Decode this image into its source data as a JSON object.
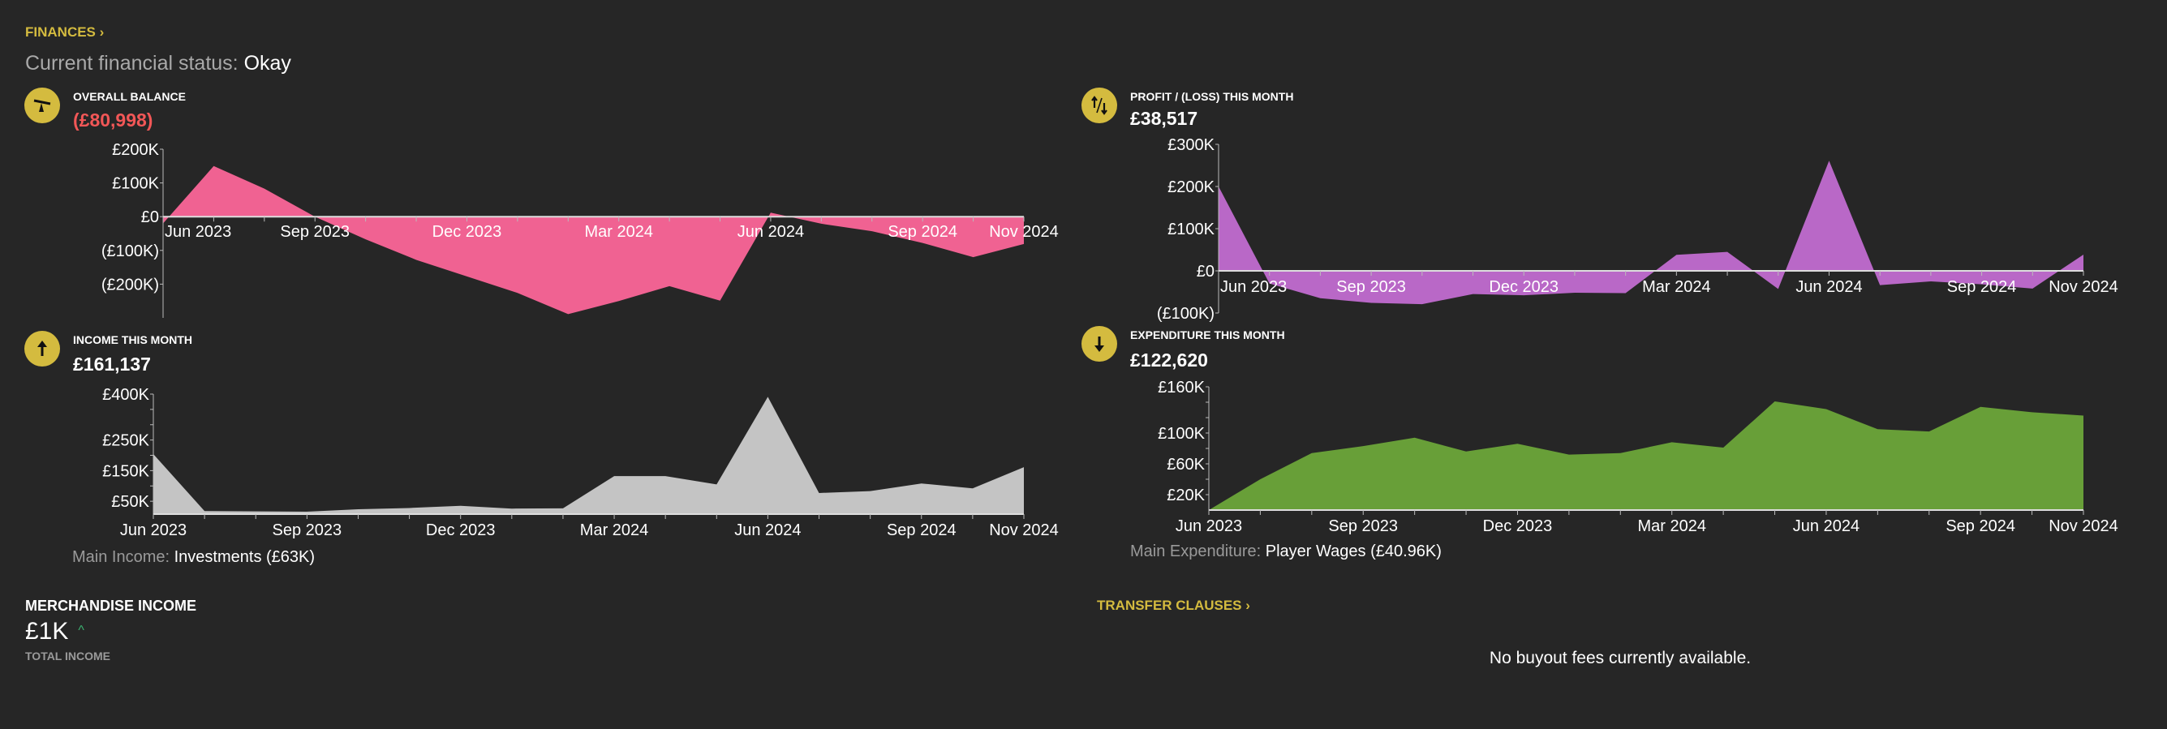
{
  "header": {
    "finances_link": "FINANCES",
    "status_label": "Current financial status:",
    "status_value": "Okay"
  },
  "balance": {
    "title": "OVERALL BALANCE",
    "value": "(£80,998)",
    "icon": "scales-icon"
  },
  "profit": {
    "title": "PROFIT / (LOSS) THIS MONTH",
    "value": "£38,517",
    "icon": "up-down-arrows-icon"
  },
  "income": {
    "title": "INCOME THIS MONTH",
    "value": "£161,137",
    "icon": "arrow-up-icon",
    "main_label": "Main Income:",
    "main_value": "Investments (£63K)"
  },
  "expenditure": {
    "title": "EXPENDITURE THIS MONTH",
    "value": "£122,620",
    "icon": "arrow-down-icon",
    "main_label": "Main Expenditure:",
    "main_value": "Player Wages (£40.96K)"
  },
  "merchandise": {
    "title": "MERCHANDISE INCOME",
    "value": "£1K",
    "trend_icon": "caret-up-icon",
    "caption": "TOTAL INCOME"
  },
  "transfer": {
    "link": "TRANSFER CLAUSES",
    "empty_message": "No buyout fees currently available."
  },
  "colors": {
    "accent": "#d4bb3f",
    "negative": "#f25757",
    "balance": "#f06292",
    "profit": "#b968c7",
    "income": "#c4c4c4",
    "expenditure": "#689f38"
  },
  "chart_data": [
    {
      "id": "balance",
      "type": "area",
      "title": "OVERALL BALANCE",
      "x": [
        "Jun 2023",
        "Jul 2023",
        "Aug 2023",
        "Sep 2023",
        "Oct 2023",
        "Nov 2023",
        "Dec 2023",
        "Jan 2024",
        "Feb 2024",
        "Mar 2024",
        "Apr 2024",
        "May 2024",
        "Jun 2024",
        "Jul 2024",
        "Aug 2024",
        "Sep 2024",
        "Oct 2024",
        "Nov 2024"
      ],
      "values": [
        -20000,
        150000,
        83000,
        0,
        -67000,
        -128000,
        -177000,
        -226000,
        -289000,
        -250000,
        -206000,
        -249000,
        12000,
        -21000,
        -43000,
        -78000,
        -120000,
        -80998
      ],
      "ylim": [
        -300000,
        200000
      ],
      "yticks": [
        {
          "v": 200000,
          "label": "£200K"
        },
        {
          "v": 100000,
          "label": "£100K"
        },
        {
          "v": 0,
          "label": "£0"
        },
        {
          "v": -100000,
          "label": "(£100K)"
        },
        {
          "v": -200000,
          "label": "(£200K)"
        }
      ],
      "xlabels": [
        {
          "i": 0,
          "label": "Jun 2023"
        },
        {
          "i": 3,
          "label": "Sep 2023"
        },
        {
          "i": 6,
          "label": "Dec 2023"
        },
        {
          "i": 9,
          "label": "Mar 2024"
        },
        {
          "i": 12,
          "label": "Jun 2024"
        },
        {
          "i": 15,
          "label": "Sep 2024"
        },
        {
          "i": 17,
          "label": "Nov 2024"
        }
      ]
    },
    {
      "id": "profit",
      "type": "area",
      "title": "PROFIT / (LOSS) THIS MONTH",
      "x": [
        "Jun 2023",
        "Jul 2023",
        "Aug 2023",
        "Sep 2023",
        "Oct 2023",
        "Nov 2023",
        "Dec 2023",
        "Jan 2024",
        "Feb 2024",
        "Mar 2024",
        "Apr 2024",
        "May 2024",
        "Jun 2024",
        "Jul 2024",
        "Aug 2024",
        "Sep 2024",
        "Oct 2024",
        "Nov 2024"
      ],
      "values": [
        200000,
        -30000,
        -65000,
        -76000,
        -79000,
        -55000,
        -58000,
        -52000,
        -53000,
        38000,
        45000,
        -43000,
        261000,
        -34000,
        -25000,
        -32000,
        -42000,
        38517
      ],
      "ylim": [
        -100000,
        300000
      ],
      "yticks": [
        {
          "v": 300000,
          "label": "£300K"
        },
        {
          "v": 200000,
          "label": "£200K"
        },
        {
          "v": 100000,
          "label": "£100K"
        },
        {
          "v": 0,
          "label": "£0"
        },
        {
          "v": -100000,
          "label": "(£100K)"
        }
      ],
      "xlabels": [
        {
          "i": 0,
          "label": "Jun 2023"
        },
        {
          "i": 3,
          "label": "Sep 2023"
        },
        {
          "i": 6,
          "label": "Dec 2023"
        },
        {
          "i": 9,
          "label": "Mar 2024"
        },
        {
          "i": 12,
          "label": "Jun 2024"
        },
        {
          "i": 15,
          "label": "Sep 2024"
        },
        {
          "i": 17,
          "label": "Nov 2024"
        }
      ]
    },
    {
      "id": "income",
      "type": "area",
      "title": "INCOME THIS MONTH",
      "x": [
        "Jun 2023",
        "Jul 2023",
        "Aug 2023",
        "Sep 2023",
        "Oct 2023",
        "Nov 2023",
        "Dec 2023",
        "Jan 2024",
        "Feb 2024",
        "Mar 2024",
        "Apr 2024",
        "May 2024",
        "Jun 2024",
        "Jul 2024",
        "Aug 2024",
        "Sep 2024",
        "Oct 2024",
        "Nov 2024"
      ],
      "values": [
        204000,
        18000,
        17000,
        16000,
        24000,
        28000,
        35000,
        26000,
        27000,
        132000,
        132000,
        105000,
        391000,
        77000,
        83000,
        108000,
        92000,
        161137
      ],
      "ylim": [
        8000,
        400000
      ],
      "yticks": [
        {
          "v": 400000,
          "label": "£400K"
        },
        {
          "v": 350000,
          "label": ""
        },
        {
          "v": 300000,
          "label": ""
        },
        {
          "v": 250000,
          "label": "£250K"
        },
        {
          "v": 200000,
          "label": ""
        },
        {
          "v": 150000,
          "label": "£150K"
        },
        {
          "v": 100000,
          "label": ""
        },
        {
          "v": 50000,
          "label": "£50K"
        }
      ],
      "xlabels": [
        {
          "i": 0,
          "label": "Jun 2023"
        },
        {
          "i": 3,
          "label": "Sep 2023"
        },
        {
          "i": 6,
          "label": "Dec 2023"
        },
        {
          "i": 9,
          "label": "Mar 2024"
        },
        {
          "i": 12,
          "label": "Jun 2024"
        },
        {
          "i": 15,
          "label": "Sep 2024"
        },
        {
          "i": 17,
          "label": "Nov 2024"
        }
      ]
    },
    {
      "id": "expenditure",
      "type": "area",
      "title": "EXPENDITURE THIS MONTH",
      "x": [
        "Jun 2023",
        "Jul 2023",
        "Aug 2023",
        "Sep 2023",
        "Oct 2023",
        "Nov 2023",
        "Dec 2023",
        "Jan 2024",
        "Feb 2024",
        "Mar 2024",
        "Apr 2024",
        "May 2024",
        "Jun 2024",
        "Jul 2024",
        "Aug 2024",
        "Sep 2024",
        "Oct 2024",
        "Nov 2024"
      ],
      "values": [
        0,
        40000,
        74000,
        83000,
        94000,
        76000,
        86000,
        72000,
        74000,
        88000,
        81000,
        141000,
        131000,
        105000,
        102000,
        134000,
        127000,
        122620
      ],
      "ylim": [
        0,
        160000
      ],
      "yticks": [
        {
          "v": 160000,
          "label": "£160K"
        },
        {
          "v": 140000,
          "label": ""
        },
        {
          "v": 120000,
          "label": ""
        },
        {
          "v": 100000,
          "label": "£100K"
        },
        {
          "v": 80000,
          "label": ""
        },
        {
          "v": 60000,
          "label": "£60K"
        },
        {
          "v": 40000,
          "label": ""
        },
        {
          "v": 20000,
          "label": "£20K"
        }
      ],
      "xlabels": [
        {
          "i": 0,
          "label": "Jun 2023"
        },
        {
          "i": 3,
          "label": "Sep 2023"
        },
        {
          "i": 6,
          "label": "Dec 2023"
        },
        {
          "i": 9,
          "label": "Mar 2024"
        },
        {
          "i": 12,
          "label": "Jun 2024"
        },
        {
          "i": 15,
          "label": "Sep 2024"
        },
        {
          "i": 17,
          "label": "Nov 2024"
        }
      ]
    }
  ]
}
